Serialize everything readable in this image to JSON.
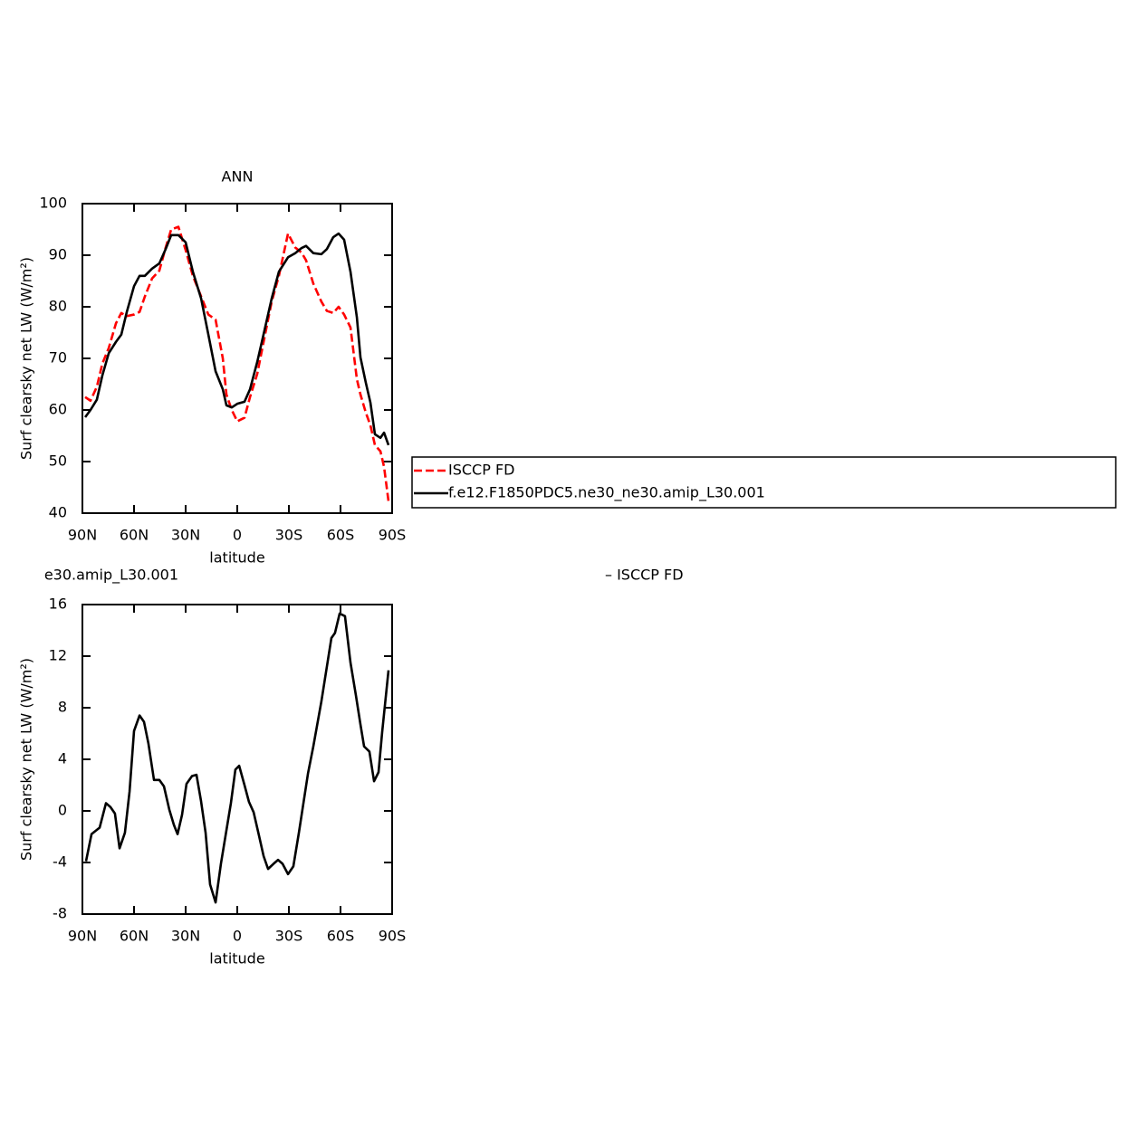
{
  "chart_data": [
    {
      "type": "line",
      "title": "ANN",
      "x_label": "latitude",
      "y_label": "Surf clearsky net LW (W/m²)",
      "x": [
        88.4,
        85.3,
        81.6,
        78.4,
        74.7,
        70.5,
        67.4,
        64.2,
        60,
        56.8,
        53.7,
        49.5,
        45.3,
        41.6,
        38.4,
        34.2,
        30,
        25.8,
        21,
        16.8,
        12.6,
        8.4,
        6.3,
        3.2,
        0,
        -4.2,
        -7.4,
        -11.6,
        -15.8,
        -20,
        -24.2,
        -29.5,
        -33.7,
        -37.4,
        -40,
        -44.2,
        -48.9,
        -52.1,
        -55.8,
        -58.9,
        -62.1,
        -65.8,
        -69.5,
        -71.6,
        -74.7,
        -77.4,
        -80,
        -83.2,
        -85.3,
        -87.9
      ],
      "series": [
        {
          "name": "ISCCP FD",
          "color": "#ff0000",
          "dashed": true,
          "values": [
            62.5,
            61.8,
            64.5,
            69,
            72,
            76.8,
            78.8,
            78.2,
            78.5,
            79,
            82,
            85.5,
            87,
            91.5,
            95,
            95.5,
            91,
            86,
            82,
            78.5,
            77.5,
            70,
            63,
            60,
            57.8,
            58.5,
            62.5,
            67,
            74,
            81,
            86,
            94.2,
            91.5,
            90.5,
            89,
            84.5,
            81,
            79.2,
            78.8,
            80,
            78.5,
            76,
            66,
            63,
            59.5,
            57,
            53.2,
            52,
            49,
            42.3
          ]
        },
        {
          "name": "f.e12.F1850PDC5.ne30_ne30.amip_L30.001",
          "color": "#000000",
          "dashed": false,
          "values": [
            58.6,
            60,
            62,
            66.7,
            71,
            73.2,
            74.6,
            79,
            84,
            86,
            86,
            87.4,
            88.4,
            91.2,
            93.9,
            93.9,
            92.5,
            86.8,
            81.6,
            74.6,
            67.5,
            64,
            60.9,
            60.5,
            61.2,
            61.6,
            64,
            69.3,
            75.4,
            81.6,
            86.8,
            89.6,
            90.4,
            91.4,
            91.8,
            90.4,
            90.2,
            91.2,
            93.5,
            94.2,
            93,
            86.8,
            78,
            70.2,
            65.3,
            61.4,
            55.3,
            54.6,
            55.6,
            53.2
          ]
        }
      ],
      "xlim": [
        90,
        -90
      ],
      "xticks": [
        {
          "value": 90,
          "label": "90N"
        },
        {
          "value": 60,
          "label": "60N"
        },
        {
          "value": 30,
          "label": "30N"
        },
        0,
        {
          "value": -30,
          "label": "30S"
        },
        {
          "value": -60,
          "label": "60S"
        },
        {
          "value": -90,
          "label": "90S"
        }
      ],
      "ylim": [
        40,
        100
      ],
      "yticks": [
        40,
        50,
        60,
        70,
        80,
        90,
        100
      ],
      "legend": "right"
    },
    {
      "type": "line",
      "title_left": "e30.amip_L30.001",
      "title_right": "– ISCCP FD",
      "x_label": "latitude",
      "y_label": "Surf clearsky net LW (W/m²)",
      "x": [
        87.9,
        84.7,
        80,
        76.3,
        73.7,
        71.1,
        68.4,
        65.3,
        62.6,
        60,
        56.8,
        54.2,
        51.6,
        48.4,
        45.3,
        42.6,
        39.5,
        36.8,
        34.7,
        32.1,
        29.5,
        26.3,
        23.7,
        21.1,
        18.4,
        15.8,
        12.6,
        9.5,
        6.3,
        3.7,
        1.1,
        -1.1,
        -4.2,
        -6.8,
        -9.5,
        -12.6,
        -15.3,
        -17.9,
        -21.1,
        -23.7,
        -26.3,
        -29.5,
        -32.6,
        -35.8,
        -41.1,
        -44.2,
        -48.9,
        -54.7,
        -56.8,
        -59.5,
        -62.6,
        -65.8,
        -68.9,
        -71.6,
        -73.7,
        -76.8,
        -79.5,
        -82.1,
        -84.2,
        -87.9
      ],
      "series": [
        {
          "color": "#000000",
          "dashed": false,
          "values": [
            -3.9,
            -1.8,
            -1.3,
            0.6,
            0.3,
            -0.2,
            -2.9,
            -1.7,
            1.5,
            6.2,
            7.4,
            6.9,
            5.2,
            2.4,
            2.4,
            1.9,
            0.1,
            -1.1,
            -1.8,
            -0.3,
            2.1,
            2.7,
            2.8,
            0.8,
            -1.7,
            -5.7,
            -7.1,
            -4.1,
            -1.5,
            0.6,
            3.2,
            3.5,
            2,
            0.7,
            -0.1,
            -1.9,
            -3.5,
            -4.5,
            -4.1,
            -3.8,
            -4.1,
            -4.9,
            -4.3,
            -1.7,
            2.9,
            5,
            8.5,
            13.4,
            13.8,
            15.3,
            15.1,
            11.5,
            9,
            6.7,
            5,
            4.6,
            2.3,
            3,
            6.1,
            10.9
          ]
        }
      ],
      "xlim": [
        90,
        -90
      ],
      "xticks": [
        {
          "value": 90,
          "label": "90N"
        },
        {
          "value": 60,
          "label": "60N"
        },
        {
          "value": 30,
          "label": "30N"
        },
        0,
        {
          "value": -30,
          "label": "30S"
        },
        {
          "value": -60,
          "label": "60S"
        },
        {
          "value": -90,
          "label": "90S"
        }
      ],
      "ylim": [
        -8,
        16
      ],
      "yticks": [
        -8,
        -4,
        0,
        4,
        8,
        12,
        16
      ]
    }
  ]
}
